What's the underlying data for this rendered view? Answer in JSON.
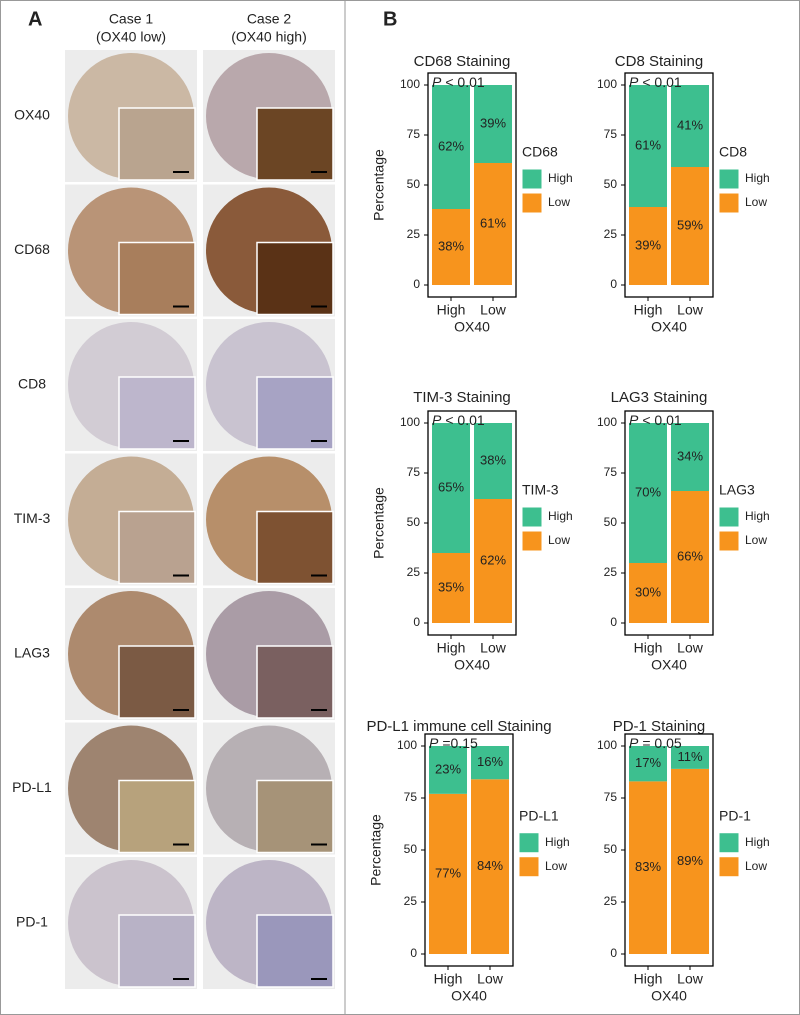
{
  "panel_a": {
    "label": "A",
    "columns": [
      {
        "line1": "Case 1",
        "line2": "(OX40 low)"
      },
      {
        "line1": "Case 2",
        "line2": "(OX40 high)"
      }
    ],
    "rows": [
      "OX40",
      "CD68",
      "CD8",
      "TIM-3",
      "LAG3",
      "PD-L1",
      "PD-1"
    ]
  },
  "panel_b": {
    "label": "B"
  },
  "chart_data": [
    {
      "type": "bar",
      "stacked": true,
      "title": "CD68 Staining",
      "p_label": "P",
      "p_value": "< 0.01",
      "y_label": "Percentage",
      "x_label": "OX40",
      "legend_title": "CD68",
      "categories": [
        "High",
        "Low"
      ],
      "ylim": [
        0,
        100
      ],
      "yticks": [
        0,
        25,
        50,
        75,
        100
      ],
      "series": [
        {
          "name": "High",
          "color": "#3dbf8f",
          "values": [
            62,
            39
          ],
          "value_labels": [
            "62%",
            "39%"
          ]
        },
        {
          "name": "Low",
          "color": "#f7941d",
          "values": [
            38,
            61
          ],
          "value_labels": [
            "38%",
            "61%"
          ]
        }
      ]
    },
    {
      "type": "bar",
      "stacked": true,
      "title": "CD8 Staining",
      "p_label": "P",
      "p_value": "< 0.01",
      "x_label": "OX40",
      "legend_title": "CD8",
      "categories": [
        "High",
        "Low"
      ],
      "ylim": [
        0,
        100
      ],
      "yticks": [
        0,
        25,
        50,
        75,
        100
      ],
      "series": [
        {
          "name": "High",
          "color": "#3dbf8f",
          "values": [
            61,
            41
          ],
          "value_labels": [
            "61%",
            "41%"
          ]
        },
        {
          "name": "Low",
          "color": "#f7941d",
          "values": [
            39,
            59
          ],
          "value_labels": [
            "39%",
            "59%"
          ]
        }
      ]
    },
    {
      "type": "bar",
      "stacked": true,
      "title": "TIM-3 Staining",
      "p_label": "P",
      "p_value": "< 0.01",
      "y_label": "Percentage",
      "x_label": "OX40",
      "legend_title": "TIM-3",
      "categories": [
        "High",
        "Low"
      ],
      "ylim": [
        0,
        100
      ],
      "yticks": [
        0,
        25,
        50,
        75,
        100
      ],
      "series": [
        {
          "name": "High",
          "color": "#3dbf8f",
          "values": [
            65,
            38
          ],
          "value_labels": [
            "65%",
            "38%"
          ]
        },
        {
          "name": "Low",
          "color": "#f7941d",
          "values": [
            35,
            62
          ],
          "value_labels": [
            "35%",
            "62%"
          ]
        }
      ]
    },
    {
      "type": "bar",
      "stacked": true,
      "title": "LAG3 Staining",
      "p_label": "P",
      "p_value": "< 0.01",
      "x_label": "OX40",
      "legend_title": "LAG3",
      "categories": [
        "High",
        "Low"
      ],
      "ylim": [
        0,
        100
      ],
      "yticks": [
        0,
        25,
        50,
        75,
        100
      ],
      "series": [
        {
          "name": "High",
          "color": "#3dbf8f",
          "values": [
            70,
            34
          ],
          "value_labels": [
            "70%",
            "34%"
          ]
        },
        {
          "name": "Low",
          "color": "#f7941d",
          "values": [
            30,
            66
          ],
          "value_labels": [
            "30%",
            "66%"
          ]
        }
      ]
    },
    {
      "type": "bar",
      "stacked": true,
      "title": "PD-L1  immune cell Staining",
      "p_label": "P",
      "p_value": "=0.15",
      "y_label": "Percentage",
      "x_label": "OX40",
      "legend_title": "PD-L1",
      "categories": [
        "High",
        "Low"
      ],
      "ylim": [
        0,
        100
      ],
      "yticks": [
        0,
        25,
        50,
        75,
        100
      ],
      "series": [
        {
          "name": "High",
          "color": "#3dbf8f",
          "values": [
            23,
            16
          ],
          "value_labels": [
            "23%",
            "16%"
          ]
        },
        {
          "name": "Low",
          "color": "#f7941d",
          "values": [
            77,
            84
          ],
          "value_labels": [
            "77%",
            "84%"
          ]
        }
      ]
    },
    {
      "type": "bar",
      "stacked": true,
      "title": "PD-1 Staining",
      "p_label": "P",
      "p_value": "= 0.05",
      "x_label": "OX40",
      "legend_title": "PD-1",
      "categories": [
        "High",
        "Low"
      ],
      "ylim": [
        0,
        100
      ],
      "yticks": [
        0,
        25,
        50,
        75,
        100
      ],
      "series": [
        {
          "name": "High",
          "color": "#3dbf8f",
          "values": [
            17,
            11
          ],
          "value_labels": [
            "17%",
            "11%"
          ]
        },
        {
          "name": "Low",
          "color": "#f7941d",
          "values": [
            83,
            89
          ],
          "value_labels": [
            "83%",
            "89%"
          ]
        }
      ]
    }
  ]
}
